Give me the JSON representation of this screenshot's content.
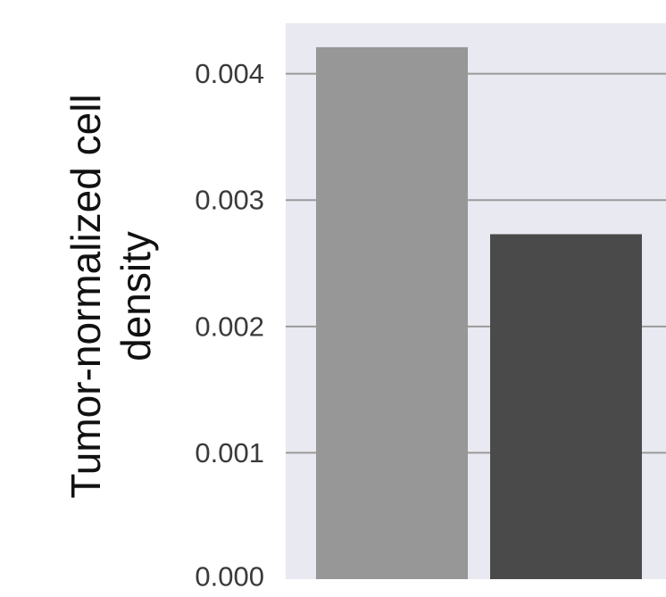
{
  "chart_data": {
    "type": "bar",
    "title": "",
    "xlabel": "",
    "ylabel_lines": [
      "Tumor-normalized cell",
      "density"
    ],
    "ylim": [
      0,
      0.0044
    ],
    "yticks": [
      {
        "value": 0,
        "label": "0.000"
      },
      {
        "value": 0.001,
        "label": "0.001"
      },
      {
        "value": 0.002,
        "label": "0.002"
      },
      {
        "value": 0.003,
        "label": "0.003"
      },
      {
        "value": 0.004,
        "label": "0.004"
      }
    ],
    "grid": true,
    "values": [
      0.00421,
      0.00273
    ],
    "colors": {
      "plot_background": "#e9e9f2",
      "gridline": "#9a9a9a",
      "bars": [
        "#979797",
        "#4a4a4a"
      ]
    }
  }
}
